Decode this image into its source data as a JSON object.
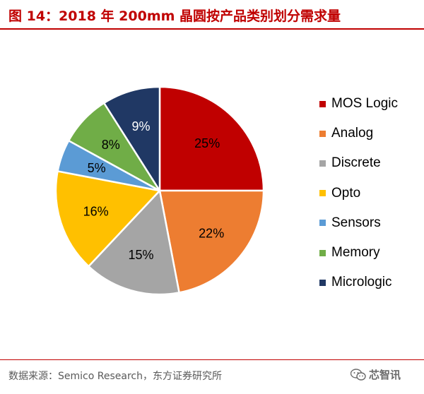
{
  "title": "图  14：2018 年 200mm 晶圆按产品类别划分需求量",
  "source": "数据来源：Semico Research，东方证券研究所",
  "watermark": "芯智讯",
  "chart_data": {
    "type": "pie",
    "title": "",
    "legend_position": "right",
    "start_angle_deg": 0,
    "direction": "clockwise",
    "slices": [
      {
        "name": "MOS Logic",
        "value": 25,
        "label": "25%",
        "color": "#c00000",
        "label_color": "#000000"
      },
      {
        "name": "Analog",
        "value": 22,
        "label": "22%",
        "color": "#ed7d31",
        "label_color": "#000000"
      },
      {
        "name": "Discrete",
        "value": 15,
        "label": "15%",
        "color": "#a5a5a5",
        "label_color": "#000000"
      },
      {
        "name": "Opto",
        "value": 16,
        "label": "16%",
        "color": "#ffc000",
        "label_color": "#000000"
      },
      {
        "name": "Sensors",
        "value": 5,
        "label": "5%",
        "color": "#5b9bd5",
        "label_color": "#000000"
      },
      {
        "name": "Memory",
        "value": 8,
        "label": "8%",
        "color": "#70ad47",
        "label_color": "#000000"
      },
      {
        "name": "Micrologic",
        "value": 9,
        "label": "9%",
        "color": "#203864",
        "label_color": "#ffffff"
      }
    ]
  }
}
